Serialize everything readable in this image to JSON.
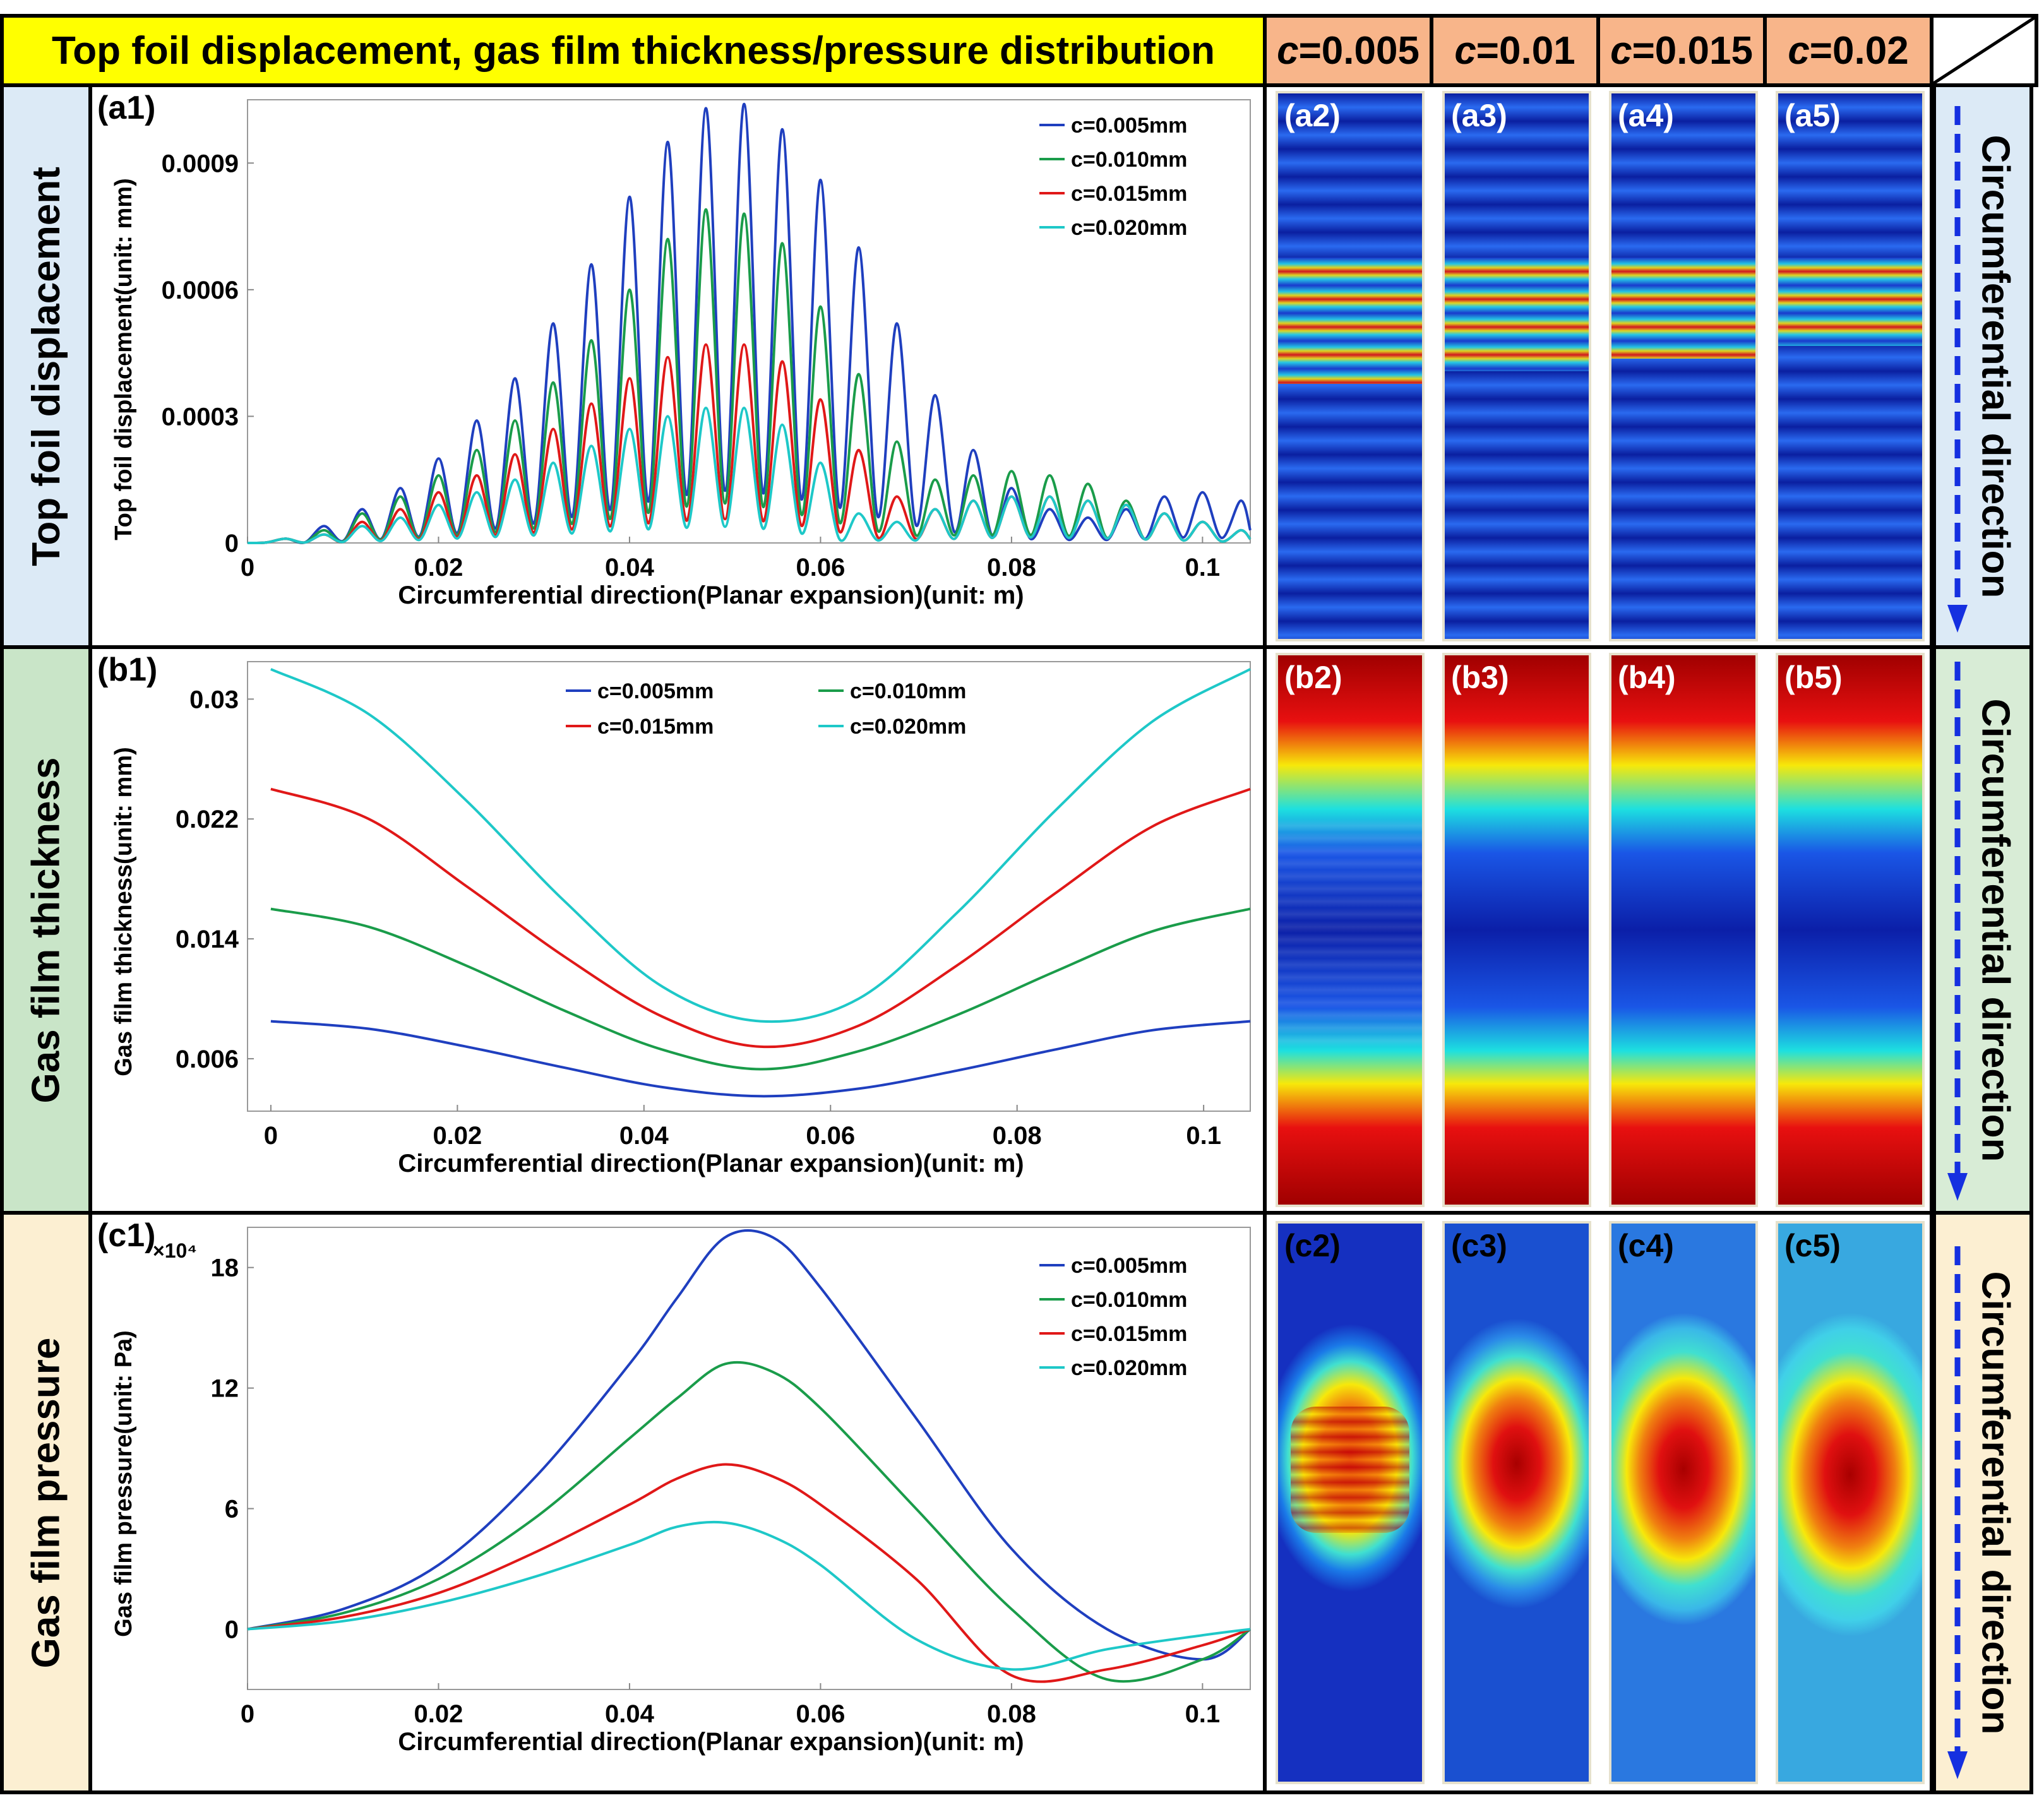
{
  "header": {
    "title": "Top foil displacement, gas film thickness/pressure distribution",
    "cases": [
      {
        "var": "c",
        "val": "=0.005"
      },
      {
        "var": "c",
        "val": "=0.01"
      },
      {
        "var": "c",
        "val": "=0.015"
      },
      {
        "var": "c",
        "val": "=0.02"
      }
    ]
  },
  "rows": [
    {
      "label": "Top foil displacement",
      "direction": "Circumferential direction",
      "heatmap_labels": [
        "(a2)",
        "(a3)",
        "(a4)",
        "(a5)"
      ]
    },
    {
      "label": "Gas film thickness",
      "direction": "Circumferential direction",
      "heatmap_labels": [
        "(b2)",
        "(b3)",
        "(b4)",
        "(b5)"
      ]
    },
    {
      "label": "Gas film pressure",
      "direction": "Circumferential direction",
      "heatmap_labels": [
        "(c2)",
        "(c3)",
        "(c4)",
        "(c5)"
      ]
    }
  ],
  "colors": {
    "c005": "#1f3fbf",
    "c010": "#1a9c4a",
    "c015": "#e01818",
    "c020": "#1ec8c8",
    "title_bg": "#ffff00",
    "case_bg": "#f8b58a",
    "row1_bg": "#dceaf6",
    "row2_bg": "#c9e5c8",
    "row3_bg": "#fcefd2"
  },
  "chart_data": [
    {
      "id": "a1",
      "panel_label": "(a1)",
      "type": "line",
      "xlabel": "Circumferential direction(Planar expansion)(unit: m)",
      "ylabel": "Top foil displacement(unit: mm)",
      "xlim": [
        0,
        0.105
      ],
      "ylim": [
        0,
        0.00105
      ],
      "xticks": [
        0,
        0.02,
        0.04,
        0.06,
        0.08,
        0.1
      ],
      "xtick_labels": [
        "0",
        "0.02",
        "0.04",
        "0.06",
        "0.08",
        "0.1"
      ],
      "yticks": [
        0,
        0.0003,
        0.0006,
        0.0009
      ],
      "ytick_labels": [
        "0",
        "0.0003",
        "0.0006",
        "0.0009"
      ],
      "legend": [
        "c=0.005mm",
        "c=0.010mm",
        "c=0.015mm",
        "c=0.020mm"
      ],
      "legend_position": "top-right",
      "peak_x": [
        0.004,
        0.008,
        0.012,
        0.016,
        0.02,
        0.024,
        0.028,
        0.032,
        0.036,
        0.04,
        0.044,
        0.048,
        0.052,
        0.056,
        0.06,
        0.064,
        0.068,
        0.072,
        0.076,
        0.08,
        0.084,
        0.088,
        0.092,
        0.096,
        0.1,
        0.104
      ],
      "series": [
        {
          "name": "c=0.005mm",
          "peaks": [
            1e-05,
            4e-05,
            8e-05,
            0.00013,
            0.0002,
            0.00029,
            0.00039,
            0.00052,
            0.00066,
            0.00082,
            0.00095,
            0.00103,
            0.00104,
            0.00098,
            0.00086,
            0.0007,
            0.00052,
            0.00035,
            0.00022,
            0.00013,
            8e-05,
            6e-05,
            8e-05,
            0.00011,
            0.00012,
            0.0001
          ]
        },
        {
          "name": "c=0.010mm",
          "peaks": [
            1e-05,
            3e-05,
            7e-05,
            0.00011,
            0.00016,
            0.00022,
            0.00029,
            0.00038,
            0.00048,
            0.0006,
            0.00072,
            0.00079,
            0.00078,
            0.00071,
            0.00056,
            0.0004,
            0.00024,
            0.00015,
            0.00016,
            0.00017,
            0.00016,
            0.00014,
            0.0001,
            7e-05,
            5e-05,
            3e-05
          ]
        },
        {
          "name": "c=0.015mm",
          "peaks": [
            1e-05,
            2e-05,
            5e-05,
            8e-05,
            0.00012,
            0.00016,
            0.00021,
            0.00027,
            0.00033,
            0.00039,
            0.00044,
            0.00047,
            0.00047,
            0.00043,
            0.00034,
            0.00022,
            0.00011,
            8e-05,
            0.0001,
            0.00011,
            0.00011,
            0.0001,
            9e-05,
            7e-05,
            5e-05,
            3e-05
          ]
        },
        {
          "name": "c=0.020mm",
          "peaks": [
            1e-05,
            2e-05,
            4e-05,
            6e-05,
            9e-05,
            0.00012,
            0.00015,
            0.00019,
            0.00023,
            0.00027,
            0.0003,
            0.00032,
            0.00032,
            0.00028,
            0.00019,
            7e-05,
            5e-05,
            8e-05,
            0.0001,
            0.00011,
            0.00011,
            0.0001,
            9e-05,
            7e-05,
            5e-05,
            3e-05
          ]
        }
      ]
    },
    {
      "id": "b1",
      "panel_label": "(b1)",
      "type": "line",
      "xlabel": "Circumferential direction(Planar expansion)(unit: m)",
      "ylabel": "Gas film thickness(unit: mm)",
      "xlim": [
        -0.0025,
        0.105
      ],
      "ylim": [
        0.0025,
        0.0325
      ],
      "xticks": [
        0,
        0.02,
        0.04,
        0.06,
        0.08,
        0.1
      ],
      "xtick_labels": [
        "0",
        "0.02",
        "0.04",
        "0.06",
        "0.08",
        "0.1"
      ],
      "yticks": [
        0.006,
        0.014,
        0.022,
        0.03
      ],
      "ytick_labels": [
        "0.006",
        "0.014",
        "0.022",
        "0.03"
      ],
      "legend": [
        "c=0.005mm",
        "c=0.010mm",
        "c=0.015mm",
        "c=0.020mm"
      ],
      "legend_position": "top-center",
      "x": [
        0,
        0.0105,
        0.021,
        0.0315,
        0.042,
        0.0525,
        0.063,
        0.0735,
        0.084,
        0.0945,
        0.105
      ],
      "series": [
        {
          "name": "c=0.005mm",
          "values": [
            0.0085,
            0.008,
            0.0068,
            0.0054,
            0.0041,
            0.0035,
            0.004,
            0.0052,
            0.0066,
            0.0079,
            0.0085
          ]
        },
        {
          "name": "c=0.010mm",
          "values": [
            0.016,
            0.0148,
            0.0122,
            0.0092,
            0.0066,
            0.0053,
            0.0065,
            0.0089,
            0.0118,
            0.0145,
            0.016
          ]
        },
        {
          "name": "c=0.015mm",
          "values": [
            0.024,
            0.022,
            0.0175,
            0.0128,
            0.0088,
            0.0068,
            0.0082,
            0.0122,
            0.017,
            0.0215,
            0.024
          ]
        },
        {
          "name": "c=0.020mm",
          "values": [
            0.032,
            0.029,
            0.0232,
            0.0165,
            0.0108,
            0.0085,
            0.01,
            0.0157,
            0.0225,
            0.0285,
            0.032
          ]
        }
      ]
    },
    {
      "id": "c1",
      "panel_label": "(c1)",
      "type": "line",
      "xlabel": "Circumferential direction(Planar expansion)(unit: m)",
      "ylabel": "Gas film pressure(unit: Pa)",
      "y_multiplier": "×10⁴",
      "xlim": [
        0,
        0.105
      ],
      "ylim": [
        -3,
        20
      ],
      "xticks": [
        0,
        0.02,
        0.04,
        0.06,
        0.08,
        0.1
      ],
      "xtick_labels": [
        "0",
        "0.02",
        "0.04",
        "0.06",
        "0.08",
        "0.1"
      ],
      "yticks": [
        0,
        6,
        12,
        18
      ],
      "ytick_labels": [
        "0",
        "6",
        "12",
        "18"
      ],
      "legend": [
        "c=0.005mm",
        "c=0.010mm",
        "c=0.015mm",
        "c=0.020mm"
      ],
      "legend_position": "top-right",
      "x": [
        0,
        0.01,
        0.02,
        0.03,
        0.04,
        0.045,
        0.05,
        0.055,
        0.06,
        0.07,
        0.08,
        0.09,
        0.1,
        0.105
      ],
      "series": [
        {
          "name": "c=0.005mm",
          "values": [
            0,
            1.0,
            3.2,
            7.5,
            13.2,
            16.5,
            19.5,
            19.5,
            17.0,
            10.5,
            4.0,
            0.0,
            -1.5,
            0
          ]
        },
        {
          "name": "c=0.010mm",
          "values": [
            0,
            0.8,
            2.5,
            5.5,
            9.5,
            11.5,
            13.2,
            12.8,
            11.0,
            6.0,
            1.0,
            -2.5,
            -1.5,
            0
          ]
        },
        {
          "name": "c=0.015mm",
          "values": [
            0,
            0.6,
            1.8,
            3.8,
            6.2,
            7.5,
            8.2,
            7.6,
            6.2,
            2.5,
            -2.3,
            -2.0,
            -0.8,
            0
          ]
        },
        {
          "name": "c=0.020mm",
          "values": [
            0,
            0.4,
            1.3,
            2.6,
            4.2,
            5.1,
            5.3,
            4.6,
            3.2,
            -0.5,
            -2.0,
            -1.0,
            -0.3,
            0
          ]
        }
      ]
    }
  ]
}
